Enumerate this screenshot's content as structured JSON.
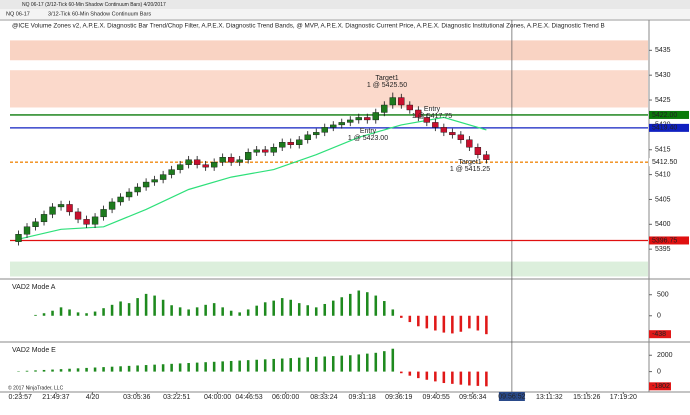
{
  "header": {
    "window_title": "NQ 06-17 (3/12-Tick 60-Min Shadow Continuum Bars) 4/20/2017",
    "instrument": "NQ 06-17",
    "bar_type": "3/12-Tick 60-Min Shadow Continuum Bars",
    "indicators": "@ICE Volume Zones v2, A.P.E.X. Diagnostic Bar Trend/Chop Filter, A.P.E.X. Diagnostic Trend Bands, @ MVP, A.P.E.X. Diagnostic Current Price, A.P.E.X. Diagnostic Institutional Zones, A.P.E.X. Diagnostic Trend B",
    "copyright": "© 2017 NinjaTrader, LLC"
  },
  "chart_data": [
    {
      "type": "candlestick",
      "xlim": [
        -1,
        74
      ],
      "ylim": [
        5389.2,
        5441.1
      ],
      "yticks": [
        5395,
        5400,
        5405,
        5410,
        5415,
        5420,
        5425,
        5430,
        5435
      ],
      "up_color": "#1e7a1e",
      "down_color": "#c8102e",
      "open": [
        5396.5,
        5398,
        5399.5,
        5400.5,
        5402,
        5403.5,
        5404,
        5402.5,
        5401,
        5400,
        5401.5,
        5403,
        5404.5,
        5405.5,
        5406.5,
        5407.5,
        5408.5,
        5409,
        5410,
        5411,
        5412,
        5413,
        5412,
        5411.5,
        5412.5,
        5413.5,
        5412.5,
        5413,
        5414.5,
        5415,
        5414.5,
        5415.5,
        5416.5,
        5416,
        5417,
        5418,
        5418.5,
        5419.5,
        5420,
        5420.5,
        5421,
        5421.5,
        5421,
        5422.5,
        5424,
        5425.5,
        5424,
        5423,
        5421.5,
        5420.5,
        5419.5,
        5418.5,
        5418,
        5417,
        5415.5,
        5414
      ],
      "high": [
        5398.75,
        5400.25,
        5401.25,
        5402.75,
        5404.25,
        5404.75,
        5404.75,
        5403.25,
        5401.75,
        5402.25,
        5403.75,
        5405.25,
        5406.25,
        5407.25,
        5408.25,
        5409.25,
        5409.75,
        5410.75,
        5411.75,
        5412.75,
        5413.75,
        5413.75,
        5412.75,
        5413.25,
        5414.25,
        5414.25,
        5413.75,
        5415.25,
        5415.75,
        5415.75,
        5416.25,
        5417.25,
        5417.25,
        5417.75,
        5418.75,
        5419.25,
        5420.25,
        5420.75,
        5421.25,
        5421.75,
        5422.25,
        5422.25,
        5423.25,
        5424.75,
        5426.5,
        5426.25,
        5424.75,
        5423.75,
        5422.25,
        5421.25,
        5420.25,
        5419.25,
        5418.75,
        5417.75,
        5416.25,
        5414.75
      ],
      "low": [
        5395.75,
        5397.25,
        5398.75,
        5399.75,
        5401.25,
        5402.75,
        5401.75,
        5400.25,
        5399.25,
        5399.25,
        5400.75,
        5402.25,
        5403.75,
        5404.75,
        5405.75,
        5406.75,
        5407.75,
        5408.25,
        5409.25,
        5410.25,
        5411.25,
        5411.25,
        5410.75,
        5410.75,
        5411.75,
        5411.75,
        5411.75,
        5412.25,
        5413.75,
        5413.75,
        5413.75,
        5414.75,
        5415.25,
        5415.25,
        5416.25,
        5417.25,
        5417.75,
        5418.75,
        5419.25,
        5419.75,
        5420.25,
        5420.25,
        5420.25,
        5421.75,
        5423.25,
        5423.25,
        5422.25,
        5420.75,
        5419.75,
        5418.75,
        5417.75,
        5417.25,
        5416.25,
        5414.75,
        5413.25,
        5412.25
      ],
      "close": [
        5398,
        5399.5,
        5400.5,
        5402,
        5403.5,
        5404,
        5402.5,
        5401,
        5400,
        5401.5,
        5403,
        5404.5,
        5405.5,
        5406.5,
        5407.5,
        5408.5,
        5409,
        5410,
        5411,
        5412,
        5413,
        5412,
        5411.5,
        5412.5,
        5413.5,
        5412.5,
        5413,
        5414.5,
        5415,
        5414.5,
        5415.5,
        5416.5,
        5416,
        5417,
        5418,
        5418.5,
        5419.5,
        5420,
        5420.5,
        5421,
        5421.5,
        5421,
        5422.5,
        5424,
        5425.5,
        5424,
        5423,
        5421.5,
        5420.5,
        5419.5,
        5418.5,
        5418,
        5417,
        5415.5,
        5414,
        5413
      ],
      "zones": [
        {
          "range": [
            5433,
            5437
          ],
          "color": "#f9d3c3"
        },
        {
          "range": [
            5423.5,
            5431
          ],
          "color": "#fbd9cb"
        },
        {
          "range": [
            5389.5,
            5392.5
          ],
          "color": "#dcefdc"
        }
      ],
      "band": {
        "color": "#2ee07a",
        "x": [
          0,
          5,
          10,
          15,
          20,
          25,
          30,
          35,
          40,
          45,
          50,
          55
        ],
        "values": [
          5397,
          5399,
          5399.5,
          5403,
          5407,
          5409.5,
          5411,
          5414,
          5417.5,
          5420,
          5421.5,
          5419
        ]
      },
      "levels": [
        {
          "value": 5422,
          "label": "5422.00",
          "color": "#0a7a0a",
          "dash": false
        },
        {
          "value": 5419.4,
          "label": "5419.40",
          "color": "#1020c0",
          "dash": false
        },
        {
          "value": 5412.5,
          "label": "5412.50",
          "color": "#f08a10",
          "dash": true
        },
        {
          "value": 5396.75,
          "label": "5396.75",
          "color": "#e01010",
          "dash": false
        }
      ],
      "annotations": [
        {
          "text": "Target1",
          "detail": "1 @ 5425.50"
        },
        {
          "text": "Entry",
          "detail": "1 @ 5417.75"
        },
        {
          "text": "Entry",
          "detail": "1 @ 5423.00"
        },
        {
          "text": "Target1",
          "detail": "1 @ 5415.25"
        }
      ],
      "cursor": {
        "value": 58,
        "label": "09:56:52"
      }
    },
    {
      "type": "histogram",
      "title": "VAD2 Mode A",
      "xlim": [
        -1,
        74
      ],
      "ylim": [
        -600,
        850
      ],
      "yticks": [
        0,
        500
      ],
      "pos_color": "#1e8a1e",
      "neg_color": "#e01818",
      "values": [
        0,
        0,
        20,
        60,
        120,
        200,
        150,
        80,
        60,
        100,
        180,
        260,
        340,
        300,
        420,
        520,
        480,
        380,
        250,
        200,
        150,
        200,
        260,
        300,
        200,
        120,
        80,
        150,
        240,
        320,
        360,
        420,
        380,
        300,
        250,
        200,
        280,
        360,
        440,
        520,
        600,
        560,
        480,
        350,
        150,
        -50,
        -150,
        -250,
        -300,
        -350,
        -400,
        -420,
        -380,
        -300,
        -350,
        -438
      ]
    },
    {
      "type": "histogram",
      "title": "VAD2 Mode E",
      "xlim": [
        -1,
        74
      ],
      "ylim": [
        -2375,
        3500
      ],
      "yticks": [
        0,
        2000
      ],
      "pos_color": "#1e8a1e",
      "neg_color": "#e01818",
      "values": [
        50,
        100,
        150,
        200,
        250,
        300,
        350,
        400,
        450,
        500,
        550,
        600,
        650,
        700,
        750,
        800,
        850,
        900,
        950,
        1000,
        1050,
        1100,
        1150,
        1200,
        1250,
        1300,
        1350,
        1400,
        1450,
        1500,
        1550,
        1600,
        1650,
        1700,
        1750,
        1800,
        1850,
        1900,
        1950,
        2000,
        2100,
        2200,
        2300,
        2500,
        2800,
        -200,
        -500,
        -800,
        -1000,
        -1200,
        -1400,
        -1500,
        -1600,
        -1700,
        -1750,
        -1802
      ],
      "xticks": [
        {
          "value": 0.2,
          "label": "0:23:57"
        },
        {
          "value": 4.4,
          "label": "21:49:37"
        },
        {
          "value": 8.7,
          "label": "4/20"
        },
        {
          "value": 13.9,
          "label": "03:05:36"
        },
        {
          "value": 18.6,
          "label": "03:22:51"
        },
        {
          "value": 23.4,
          "label": "04:00:00"
        },
        {
          "value": 27.1,
          "label": "04:46:53"
        },
        {
          "value": 31.4,
          "label": "06:00:00"
        },
        {
          "value": 35.9,
          "label": "08:33:24"
        },
        {
          "value": 40.4,
          "label": "09:31:18"
        },
        {
          "value": 44.7,
          "label": "09:36:19"
        },
        {
          "value": 49.1,
          "label": "09:40:55"
        },
        {
          "value": 53.4,
          "label": "09:56:34"
        },
        {
          "value": 62.4,
          "label": "13:11:32"
        },
        {
          "value": 66.8,
          "label": "15:15:26"
        },
        {
          "value": 71.1,
          "label": "17:19:20"
        }
      ]
    }
  ]
}
